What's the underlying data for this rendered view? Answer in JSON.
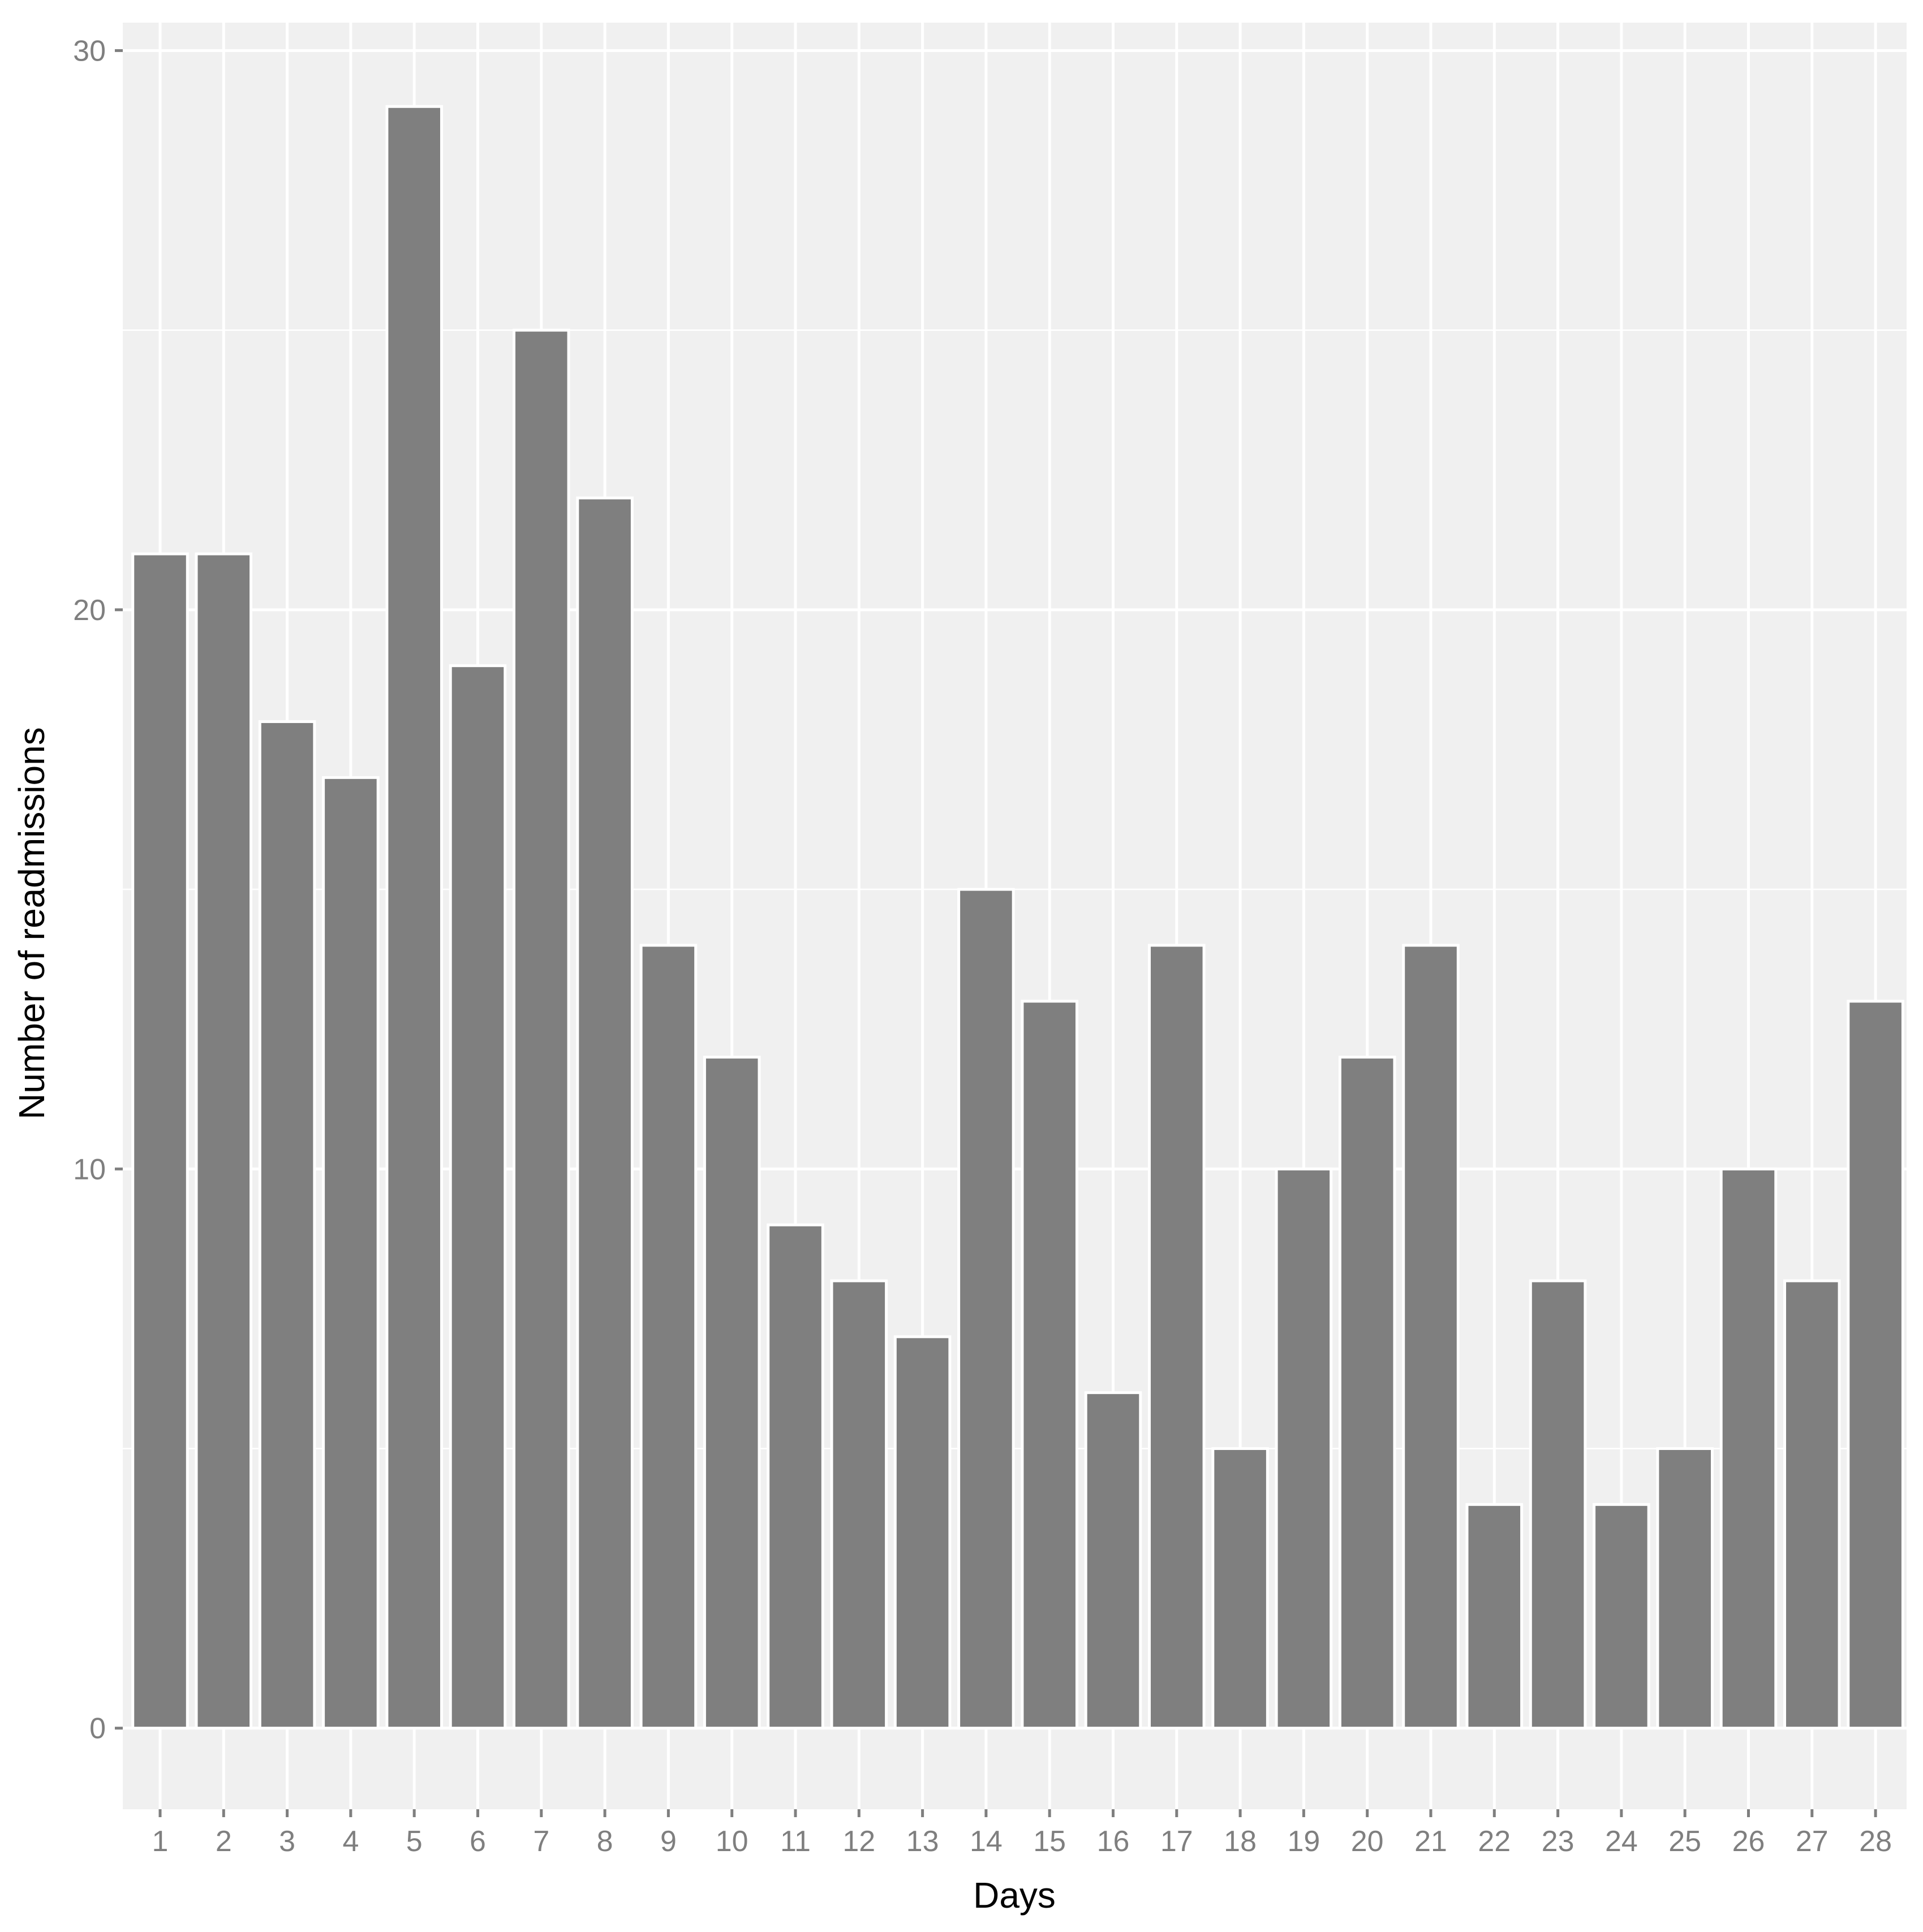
{
  "chart_data": {
    "type": "bar",
    "xlabel": "Days",
    "ylabel": "Number of readmissions",
    "categories": [
      "1",
      "2",
      "3",
      "4",
      "5",
      "6",
      "7",
      "8",
      "9",
      "10",
      "11",
      "12",
      "13",
      "14",
      "15",
      "16",
      "17",
      "18",
      "19",
      "20",
      "21",
      "22",
      "23",
      "24",
      "25",
      "26",
      "27",
      "28"
    ],
    "values": [
      21,
      21,
      18,
      17,
      29,
      19,
      25,
      22,
      14,
      12,
      9,
      8,
      7,
      15,
      13,
      6,
      14,
      5,
      10,
      12,
      14,
      4,
      8,
      4,
      5,
      10,
      8,
      13
    ],
    "yticks": [
      0,
      10,
      20,
      30
    ],
    "ylim": [
      -1.45,
      30.5
    ],
    "grid": true,
    "colors": {
      "bar_fill": "#7f7f7f",
      "bar_outline": "#ffffff",
      "panel_background": "#f0f0f0",
      "grid_line": "#ffffff",
      "axis_tick": "#7f7f7f"
    }
  }
}
